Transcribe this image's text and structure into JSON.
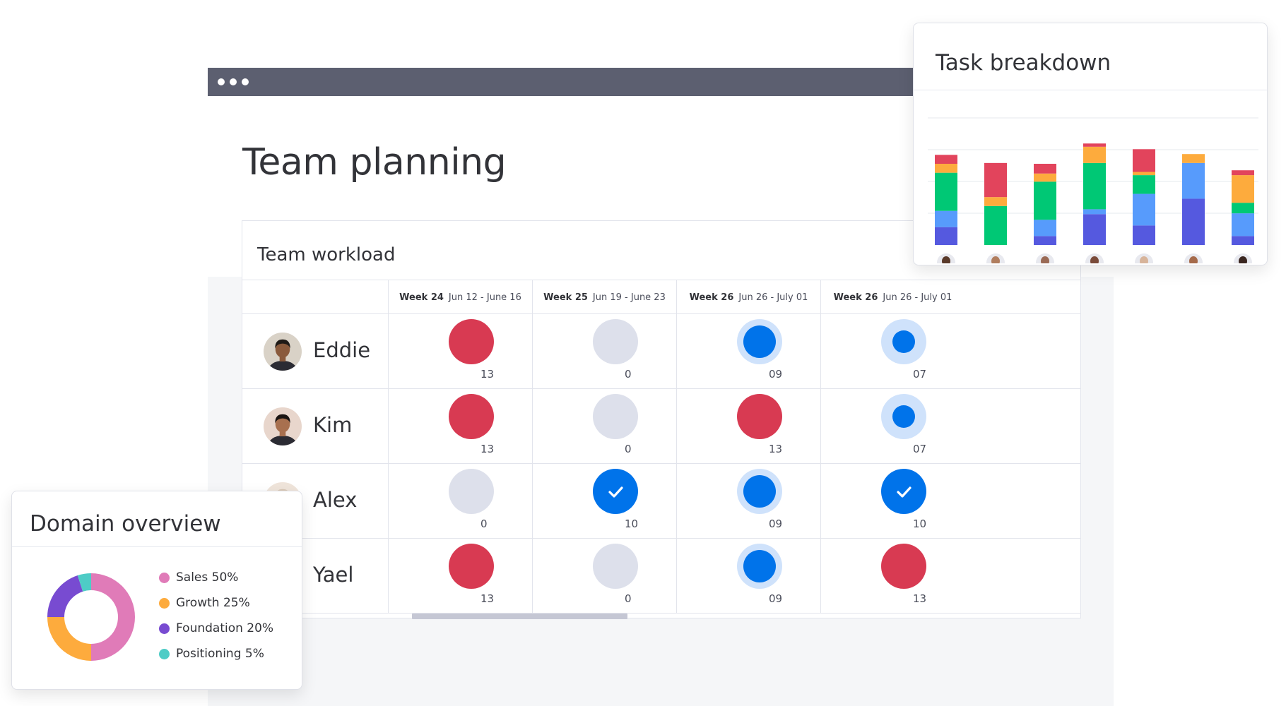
{
  "page": {
    "title": "Team planning"
  },
  "workload": {
    "title": "Team workload",
    "weeks": [
      {
        "week": "Week 24",
        "range": "Jun 12 - June 16"
      },
      {
        "week": "Week 25",
        "range": "Jun 19 - June 23"
      },
      {
        "week": "Week 26",
        "range": "Jun 26 - July 01"
      },
      {
        "week": "Week 26",
        "range": "Jun 26 - July 01"
      }
    ],
    "people": [
      {
        "name": "Eddie",
        "cells": [
          {
            "status": "overloaded",
            "count": "13"
          },
          {
            "status": "empty",
            "count": "0"
          },
          {
            "status": "in-progress",
            "count": "09"
          },
          {
            "status": "light",
            "count": "07"
          }
        ]
      },
      {
        "name": "Kim",
        "cells": [
          {
            "status": "overloaded",
            "count": "13"
          },
          {
            "status": "empty",
            "count": "0"
          },
          {
            "status": "overloaded",
            "count": "13"
          },
          {
            "status": "light",
            "count": "07"
          }
        ]
      },
      {
        "name": "Alex",
        "cells": [
          {
            "status": "empty",
            "count": "0"
          },
          {
            "status": "done",
            "count": "10"
          },
          {
            "status": "in-progress",
            "count": "09"
          },
          {
            "status": "done",
            "count": "10"
          }
        ]
      },
      {
        "name": "Yael",
        "cells": [
          {
            "status": "overloaded",
            "count": "13"
          },
          {
            "status": "empty",
            "count": "0"
          },
          {
            "status": "in-progress",
            "count": "09"
          },
          {
            "status": "overloaded",
            "count": "13"
          }
        ]
      }
    ]
  },
  "task_breakdown": {
    "title": "Task breakdown"
  },
  "domain_overview": {
    "title": "Domain overview"
  },
  "colors": {
    "titlebar": "#5c5f70",
    "overloaded": "#d83a52",
    "empty": "#dde0eb",
    "working": "#0073ea",
    "working_ring": "#cfe2fb",
    "purple": "#5559df",
    "light_blue": "#579bfc",
    "green": "#00c875",
    "orange": "#fdab3d",
    "red": "#e2445c"
  },
  "chart_data": [
    {
      "type": "bar",
      "stacked": true,
      "title": "Task breakdown",
      "categories": [
        "",
        "",
        "",
        "",
        "",
        "",
        ""
      ],
      "series": [
        {
          "color": "#5559df",
          "values": [
            22,
            0,
            11,
            38,
            24,
            57,
            11
          ]
        },
        {
          "color": "#579bfc",
          "values": [
            20,
            0,
            20,
            6,
            39,
            44,
            28
          ]
        },
        {
          "color": "#00c875",
          "values": [
            47,
            48,
            47,
            57,
            23,
            0,
            13
          ]
        },
        {
          "color": "#fdab3d",
          "values": [
            11,
            11,
            10,
            20,
            4,
            11,
            34
          ]
        },
        {
          "color": "#e2445c",
          "values": [
            11,
            42,
            12,
            4,
            28,
            0,
            6
          ]
        }
      ],
      "ylim": [
        0,
        130
      ],
      "grid": true,
      "x_icons": [
        "avatar-icon",
        "avatar-icon",
        "avatar-icon",
        "avatar-icon",
        "avatar-icon",
        "avatar-icon",
        "avatar-icon"
      ]
    },
    {
      "type": "pie",
      "title": "Domain overview",
      "donut": true,
      "labels": [
        "Sales 50%",
        "Growth 25%",
        "Foundation 20%",
        "Positioning 5%"
      ],
      "values": [
        50,
        25,
        20,
        5
      ],
      "colors": [
        "#e07bb8",
        "#fdab3d",
        "#784bd1",
        "#4eccc6"
      ],
      "legend": "right"
    }
  ]
}
